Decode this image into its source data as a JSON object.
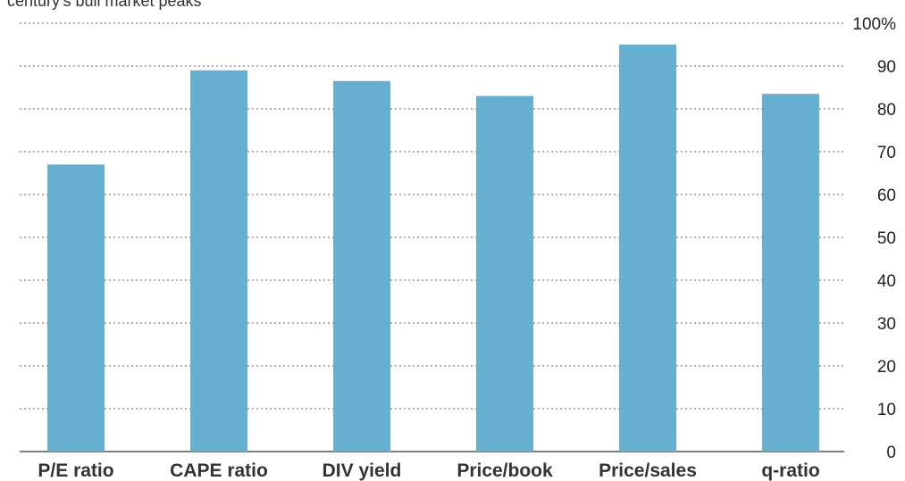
{
  "chart_data": {
    "type": "bar",
    "title": "",
    "subtitle": "century's bull market peaks",
    "xlabel": "",
    "ylabel": "",
    "categories": [
      "P/E ratio",
      "CAPE ratio",
      "DIV yield",
      "Price/book",
      "Price/sales",
      "q-ratio"
    ],
    "values": [
      67,
      89,
      86.5,
      83,
      95,
      83.5
    ],
    "ylim": [
      0,
      100
    ],
    "yticks": [
      0,
      10,
      20,
      30,
      40,
      50,
      60,
      70,
      80,
      90,
      100
    ],
    "ytick_labels": [
      "0",
      "10",
      "20",
      "30",
      "40",
      "50",
      "60",
      "70",
      "80",
      "90",
      "100%"
    ],
    "y_axis_position": "right",
    "grid": true,
    "grid_style": "dotted",
    "bar_color": "#67afd0"
  }
}
